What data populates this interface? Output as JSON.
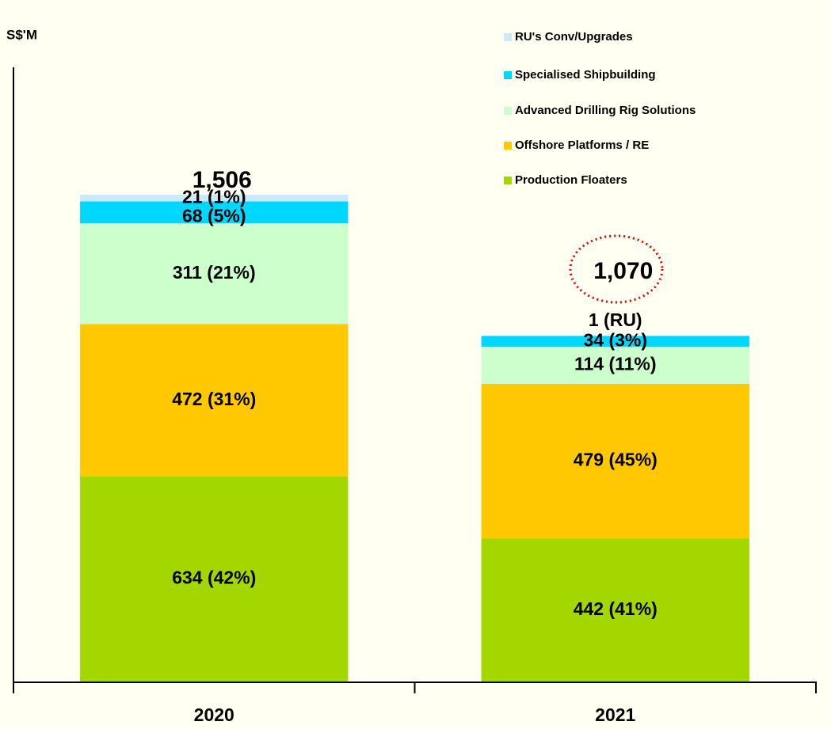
{
  "chart_data": {
    "type": "stacked_bar",
    "y_axis_label": "S$'M",
    "categories": [
      "2020",
      "2021"
    ],
    "series": [
      {
        "name": "Production Floaters",
        "color": "#a4d600",
        "values": [
          634,
          442
        ],
        "value_labels": [
          "634 (42%)",
          "442 (41%)"
        ]
      },
      {
        "name": "Offshore Platforms / RE",
        "color": "#ffc800",
        "values": [
          472,
          479
        ],
        "value_labels": [
          "472 (31%)",
          "479 (45%)"
        ]
      },
      {
        "name": "Advanced Drilling Rig Solutions",
        "color": "#ccffcc",
        "values": [
          311,
          114
        ],
        "value_labels": [
          "311 (21%)",
          "114 (11%)"
        ]
      },
      {
        "name": "Specialised Shipbuilding",
        "color": "#00d7ff",
        "values": [
          68,
          34
        ],
        "value_labels": [
          "68 (5%)",
          "34 (3%)"
        ]
      },
      {
        "name": "RU's Conv/Upgrades",
        "color": "#cce9f9",
        "values": [
          21,
          1
        ],
        "value_labels": [
          "21 (1%)",
          "1 (RU)"
        ]
      }
    ],
    "total_labels": [
      "1,506",
      "1,070"
    ],
    "ylim": [
      0,
      1900
    ]
  }
}
